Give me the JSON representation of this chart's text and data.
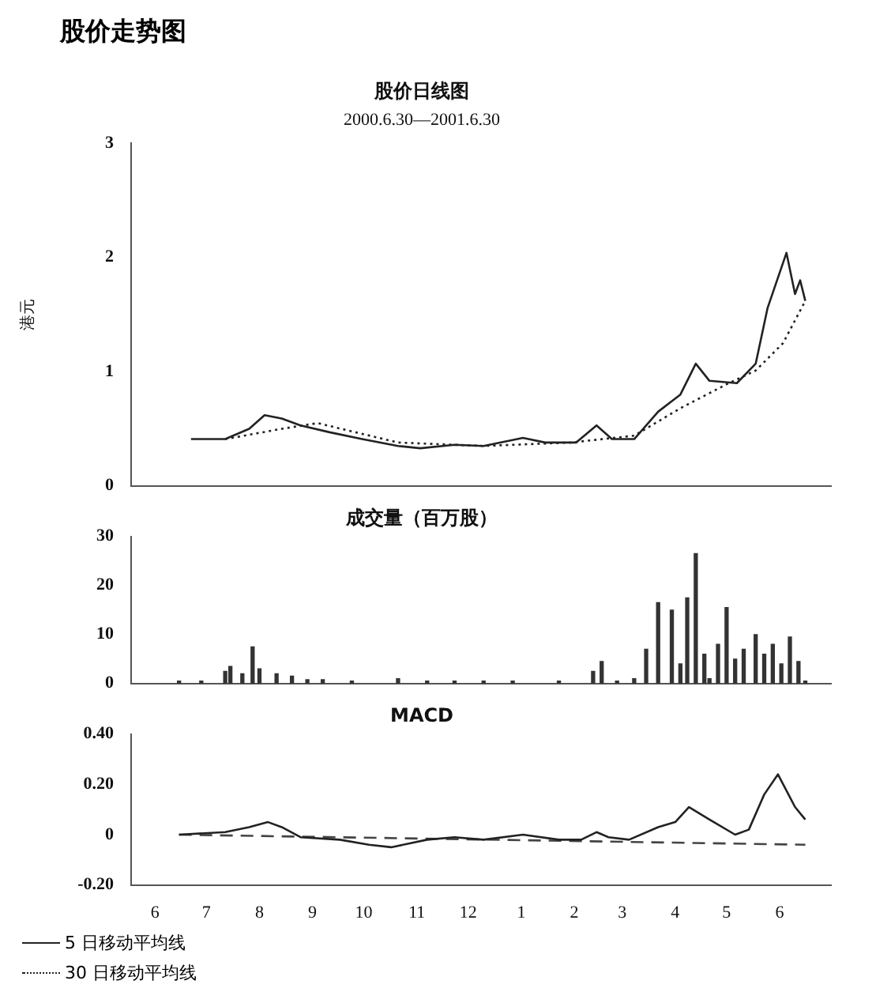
{
  "chart_data": [
    {
      "type": "line",
      "title": "股价日线图",
      "subtitle": "2000.6.30—2001.6.30",
      "ylabel": "港元",
      "annotations": [
        "股价走势图"
      ],
      "xlim": [
        "2000-06-01",
        "2001-07-15"
      ],
      "ylim": [
        0,
        3
      ],
      "yticks": [
        0,
        1,
        2,
        3
      ],
      "tick_labels": "y",
      "marker": "none",
      "legend": "bottom left",
      "series": [
        {
          "name": "5 日移动平均线",
          "color": "#222222",
          "line_style": "solid",
          "x": [
            "2000-07-06",
            "2000-07-26",
            "2000-08-09",
            "2000-08-18",
            "2000-08-28",
            "2000-09-08",
            "2000-09-25",
            "2000-10-14",
            "2000-11-04",
            "2000-11-17",
            "2000-12-07",
            "2000-12-24",
            "2001-01-16",
            "2001-01-29",
            "2001-02-16",
            "2001-02-28",
            "2001-03-09",
            "2001-03-22",
            "2001-04-05",
            "2001-04-18",
            "2001-04-27",
            "2001-05-05",
            "2001-05-21",
            "2001-06-01",
            "2001-06-08",
            "2001-06-19",
            "2001-06-24",
            "2001-06-27",
            "2001-06-30"
          ],
          "values": [
            0.41,
            0.41,
            0.5,
            0.62,
            0.59,
            0.53,
            0.47,
            0.41,
            0.35,
            0.33,
            0.36,
            0.35,
            0.42,
            0.38,
            0.38,
            0.53,
            0.41,
            0.41,
            0.65,
            0.8,
            1.07,
            0.92,
            0.9,
            1.07,
            1.56,
            2.04,
            1.68,
            1.8,
            1.62
          ]
        },
        {
          "name": "30 日移动平均线",
          "color": "#222222",
          "line_style": "dotted",
          "x": [
            "2000-07-26",
            "2000-08-28",
            "2000-09-18",
            "2000-11-04",
            "2000-12-24",
            "2001-02-13",
            "2001-03-22",
            "2001-04-18",
            "2001-05-15",
            "2001-06-01",
            "2001-06-17",
            "2001-06-30"
          ],
          "values": [
            0.41,
            0.5,
            0.55,
            0.38,
            0.35,
            0.38,
            0.44,
            0.68,
            0.89,
            1.01,
            1.25,
            1.62
          ]
        }
      ]
    },
    {
      "type": "bar",
      "title": "成交量（百万股）",
      "xlim": [
        "2000-06-01",
        "2001-07-15"
      ],
      "ylim": [
        0,
        30
      ],
      "yticks": [
        0,
        10,
        20,
        30
      ],
      "tick_labels": "y",
      "color": "#333333",
      "x": [
        "2000-06-29",
        "2000-07-12",
        "2000-07-26",
        "2000-07-29",
        "2000-08-05",
        "2000-08-11",
        "2000-08-15",
        "2000-08-25",
        "2000-09-03",
        "2000-09-12",
        "2000-09-21",
        "2000-10-08",
        "2000-11-04",
        "2000-11-21",
        "2000-12-07",
        "2000-12-24",
        "2001-01-10",
        "2001-02-06",
        "2001-02-26",
        "2001-03-03",
        "2001-03-12",
        "2001-03-22",
        "2001-03-29",
        "2001-04-05",
        "2001-04-13",
        "2001-04-18",
        "2001-04-22",
        "2001-04-27",
        "2001-05-02",
        "2001-05-05",
        "2001-05-10",
        "2001-05-15",
        "2001-05-20",
        "2001-05-25",
        "2001-06-01",
        "2001-06-06",
        "2001-06-11",
        "2001-06-16",
        "2001-06-21",
        "2001-06-26",
        "2001-06-30"
      ],
      "values": [
        0.5,
        0.5,
        2.5,
        3.5,
        2,
        7.5,
        3,
        2,
        1.5,
        0.8,
        0.8,
        0.5,
        1,
        0.5,
        0.5,
        0.5,
        0.5,
        0.5,
        2.5,
        4.5,
        0.5,
        1,
        7,
        16.5,
        15,
        4,
        17.5,
        26.5,
        6,
        1,
        8,
        15.5,
        5,
        7,
        10,
        6,
        8,
        4,
        9.5,
        4.5,
        0.5
      ]
    },
    {
      "type": "line",
      "title": "MACD",
      "xlim": [
        "2000-06-01",
        "2001-07-15"
      ],
      "xticks": [
        {
          "value": "2000-06-15",
          "label": "6"
        },
        {
          "value": "2000-07-15",
          "label": "7"
        },
        {
          "value": "2000-08-15",
          "label": "8"
        },
        {
          "value": "2000-09-15",
          "label": "9"
        },
        {
          "value": "2000-10-15",
          "label": "10"
        },
        {
          "value": "2000-11-15",
          "label": "11"
        },
        {
          "value": "2000-12-15",
          "label": "12"
        },
        {
          "value": "2001-01-15",
          "label": "1"
        },
        {
          "value": "2001-02-15",
          "label": "2"
        },
        {
          "value": "2001-03-15",
          "label": "3"
        },
        {
          "value": "2001-04-15",
          "label": "4"
        },
        {
          "value": "2001-05-15",
          "label": "5"
        },
        {
          "value": "2001-06-15",
          "label": "6"
        }
      ],
      "ylim": [
        -0.2,
        0.4
      ],
      "yticks": [
        {
          "value": -0.2,
          "label": "-0.20"
        },
        0,
        {
          "value": 0.2,
          "label": "0.20"
        },
        {
          "value": 0.4,
          "label": "0.40"
        }
      ],
      "marker": "none",
      "series": [
        {
          "color": "#222222",
          "line_style": "solid",
          "x": [
            "2000-06-29",
            "2000-07-26",
            "2000-08-09",
            "2000-08-20",
            "2000-08-28",
            "2000-09-08",
            "2000-10-01",
            "2000-10-18",
            "2000-10-31",
            "2000-11-21",
            "2000-12-07",
            "2000-12-24",
            "2001-01-16",
            "2001-02-06",
            "2001-02-19",
            "2001-02-28",
            "2001-03-07",
            "2001-03-19",
            "2001-04-05",
            "2001-04-15",
            "2001-04-23",
            "2001-05-05",
            "2001-05-20",
            "2001-05-28",
            "2001-06-06",
            "2001-06-14",
            "2001-06-24",
            "2001-06-30"
          ],
          "values": [
            0,
            0.01,
            0.03,
            0.05,
            0.03,
            -0.01,
            -0.02,
            -0.04,
            -0.05,
            -0.02,
            -0.01,
            -0.02,
            0,
            -0.02,
            -0.02,
            0.01,
            -0.01,
            -0.02,
            0.03,
            0.05,
            0.11,
            0.06,
            0,
            0.02,
            0.16,
            0.24,
            0.11,
            0.06
          ]
        },
        {
          "color": "#444444",
          "line_style": "dashed",
          "x": [
            "2000-06-29",
            "2001-06-30"
          ],
          "values": [
            0,
            -0.04
          ]
        }
      ]
    }
  ]
}
